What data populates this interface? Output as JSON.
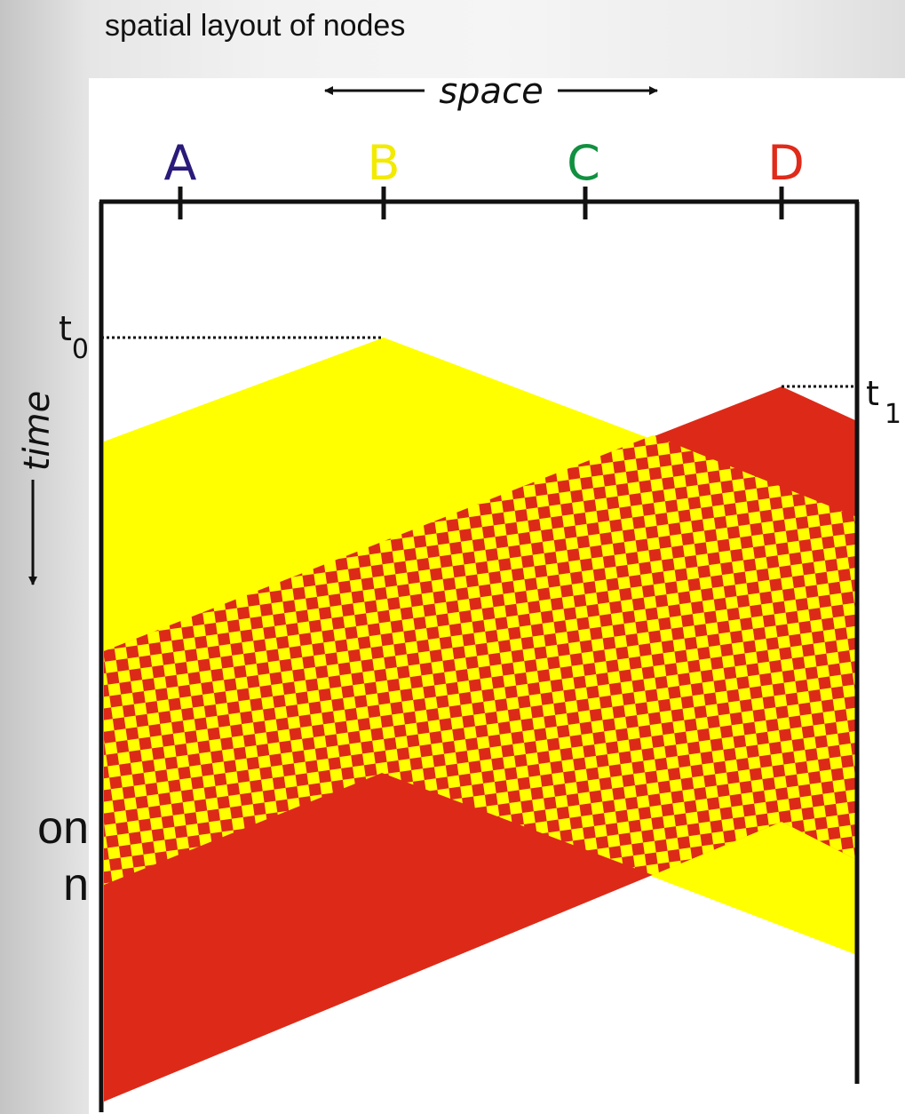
{
  "caption": "spatial layout of nodes",
  "axis": {
    "space_label": "space",
    "time_label": "time"
  },
  "nodes": [
    {
      "name": "A",
      "color": "#2a1a7a"
    },
    {
      "name": "B",
      "color": "#f2ea00"
    },
    {
      "name": "C",
      "color": "#119040"
    },
    {
      "name": "D",
      "color": "#e02a1a"
    }
  ],
  "time_markers": {
    "t0": {
      "letter": "t",
      "sub": "0"
    },
    "t1": {
      "letter": "t",
      "sub": "1"
    }
  },
  "colors": {
    "yellow": "#ffff00",
    "red": "#dd2a18",
    "frame": "#111111"
  },
  "background_text": [
    "on",
    "n"
  ]
}
